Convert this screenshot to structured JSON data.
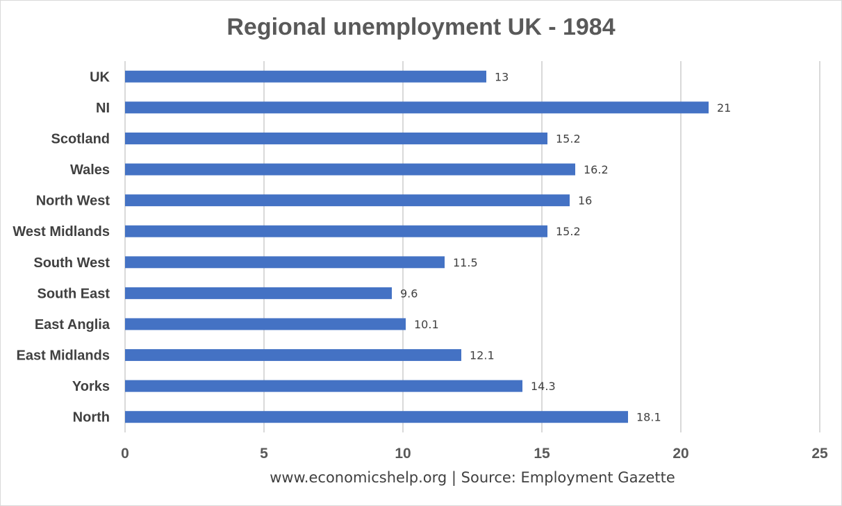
{
  "chart_data": {
    "type": "bar",
    "orientation": "horizontal",
    "title": "Regional unemployment UK - 1984",
    "categories": [
      "UK",
      "NI",
      "Scotland",
      "Wales",
      "North West",
      "West Midlands",
      "South West",
      "South East",
      "East Anglia",
      "East Midlands",
      "Yorks",
      "North"
    ],
    "values": [
      13,
      21,
      15.2,
      16.2,
      16,
      15.2,
      11.5,
      9.6,
      10.1,
      12.1,
      14.3,
      18.1
    ],
    "data_labels": [
      "13",
      "21",
      "15.2",
      "16.2",
      "16",
      "15.2",
      "11.5",
      "9.6",
      "10.1",
      "12.1",
      "14.3",
      "18.1"
    ],
    "xlim": [
      0,
      25
    ],
    "x_ticks": [
      0,
      5,
      10,
      15,
      20,
      25
    ],
    "x_tick_labels": [
      "0",
      "5",
      "10",
      "15",
      "20",
      "25"
    ],
    "grid": true,
    "legend": "none",
    "source": "www.economicshelp.org | Source: Employment Gazette",
    "colors": {
      "bar": "#4472c4",
      "grid": "#d9d9d9",
      "tick_text": "#595959",
      "category_text": "#404040",
      "label_text": "#404040"
    }
  }
}
